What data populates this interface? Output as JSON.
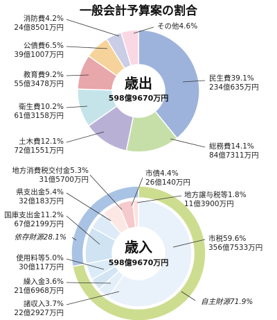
{
  "title": "一般会計予算案の割合",
  "chart_data": [
    {
      "type": "pie",
      "title": "歳出",
      "total": "598億9670万円",
      "slices": [
        {
          "name": "民生費",
          "percent": 39.1,
          "amount": "234億635万円",
          "color": "#9db3dc",
          "pct_label": "民生費39.1%"
        },
        {
          "name": "総務費",
          "percent": 14.1,
          "amount": "84億7311万円",
          "color": "#c6dfa8",
          "pct_label": "総務費14.1%"
        },
        {
          "name": "土木費",
          "percent": 12.1,
          "amount": "72億1551万円",
          "color": "#b9b0d6",
          "pct_label": "土木費12.1%"
        },
        {
          "name": "衛生費",
          "percent": 10.2,
          "amount": "61億3158万円",
          "color": "#c4e4ea",
          "pct_label": "衛生費10.2%"
        },
        {
          "name": "教育費",
          "percent": 9.2,
          "amount": "55億3478万円",
          "color": "#e8a7ab",
          "pct_label": "教育費9.2%"
        },
        {
          "name": "公債費",
          "percent": 6.5,
          "amount": "39億1007万円",
          "color": "#f6d39a",
          "pct_label": "公債費6.5%"
        },
        {
          "name": "消防費",
          "percent": 4.2,
          "amount": "24億8501万円",
          "color": "#c9cde6",
          "pct_label": "消防費4.2%"
        },
        {
          "name": "その他",
          "percent": 4.6,
          "amount": "",
          "color": "#f9d7e3",
          "pct_label": "その他4.6%"
        }
      ]
    },
    {
      "type": "pie",
      "title": "歳入",
      "total": "598億9670万円",
      "slices": [
        {
          "name": "市税",
          "percent": 59.6,
          "amount": "356億7533万円",
          "color": "#e9f1fb",
          "pct_label": "市税59.6%"
        },
        {
          "name": "諸収入",
          "percent": 3.7,
          "amount": "22億2927万円",
          "color": "#e2eef8",
          "pct_label": "諸収入3.7%"
        },
        {
          "name": "繰入金",
          "percent": 3.6,
          "amount": "21億6968万円",
          "color": "#d3e5f3",
          "pct_label": "繰入金3.6%"
        },
        {
          "name": "使用料等",
          "percent": 5.0,
          "amount": "30億117万円",
          "color": "#dbebf7",
          "pct_label": "使用料等5.0%"
        },
        {
          "name": "国庫支出金",
          "percent": 11.2,
          "amount": "67億2199万円",
          "color": "#cfe3f2",
          "pct_label": "国庫支出金11.2%"
        },
        {
          "name": "県支出金",
          "percent": 5.4,
          "amount": "32億183万円",
          "color": "#dcebf7",
          "pct_label": "県支出金5.4%"
        },
        {
          "name": "地方消費税交付金",
          "percent": 5.3,
          "amount": "31億5700万円",
          "color": "#fbe7e4",
          "pct_label": "地方消費税交付金5.3%"
        },
        {
          "name": "市債",
          "percent": 4.4,
          "amount": "26億140万円",
          "color": "#f6c9cc",
          "pct_label": "市債4.4%"
        },
        {
          "name": "地方譲与税等",
          "percent": 1.8,
          "amount": "11億3900万円",
          "color": "#fbe3e0",
          "pct_label": "地方譲与税等1.8%"
        }
      ],
      "groups": [
        {
          "name": "自主財源",
          "percent": 71.9,
          "label": "自主財源71.9%",
          "color": "#cddd8f"
        },
        {
          "name": "依存財源",
          "percent": 28.1,
          "label": "依存財源28.1%",
          "color": "#a9c3e4"
        }
      ]
    }
  ]
}
